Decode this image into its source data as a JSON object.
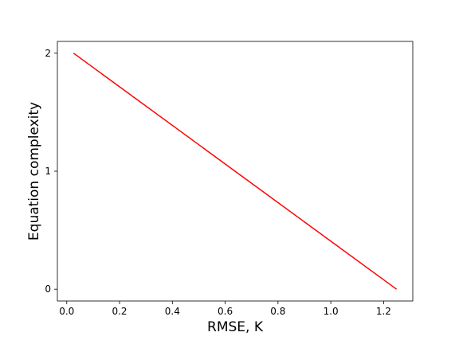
{
  "chart_data": {
    "type": "line",
    "title": "",
    "xlabel": "RMSE, K",
    "ylabel": "Equation complexity",
    "xlim": [
      -0.0355,
      1.3105
    ],
    "ylim": [
      -0.1,
      2.1
    ],
    "x_ticks": [
      0.0,
      0.2,
      0.4,
      0.6,
      0.8,
      1.0,
      1.2
    ],
    "x_tick_labels": [
      "0.0",
      "0.2",
      "0.4",
      "0.6",
      "0.8",
      "1.0",
      "1.2"
    ],
    "y_ticks": [
      0,
      1,
      2
    ],
    "y_tick_labels": [
      "0",
      "1",
      "2"
    ],
    "grid": false,
    "series": [
      {
        "color": "#ff0000",
        "x": [
          0.026,
          1.249
        ],
        "y": [
          2,
          0
        ]
      }
    ]
  }
}
